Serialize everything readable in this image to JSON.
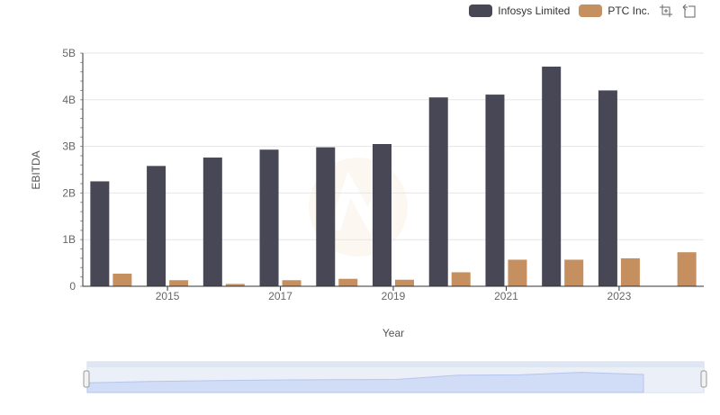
{
  "chart_data": {
    "type": "bar",
    "categories": [
      2014,
      2015,
      2016,
      2017,
      2018,
      2019,
      2020,
      2021,
      2022,
      2023,
      2024
    ],
    "series": [
      {
        "name": "Infosys Limited",
        "color": "#474756",
        "values": [
          2.25,
          2.58,
          2.76,
          2.93,
          2.98,
          3.05,
          4.05,
          4.11,
          4.71,
          4.2,
          null
        ]
      },
      {
        "name": "PTC Inc.",
        "color": "#c58f5f",
        "values": [
          0.27,
          0.13,
          0.05,
          0.13,
          0.16,
          0.14,
          0.3,
          0.57,
          0.57,
          0.6,
          0.73
        ]
      }
    ],
    "xlabel": "Year",
    "ylabel": "EBITDA",
    "ylim": [
      0,
      5
    ],
    "yticks": [
      "0",
      "1B",
      "2B",
      "3B",
      "4B",
      "5B"
    ],
    "xticks": [
      "2015",
      "2017",
      "2019",
      "2021",
      "2023"
    ],
    "grid": true,
    "legend_position": "top-right"
  },
  "toolbar": {
    "icons": [
      "crosshair-zoom-icon",
      "reset-zoom-icon"
    ]
  }
}
